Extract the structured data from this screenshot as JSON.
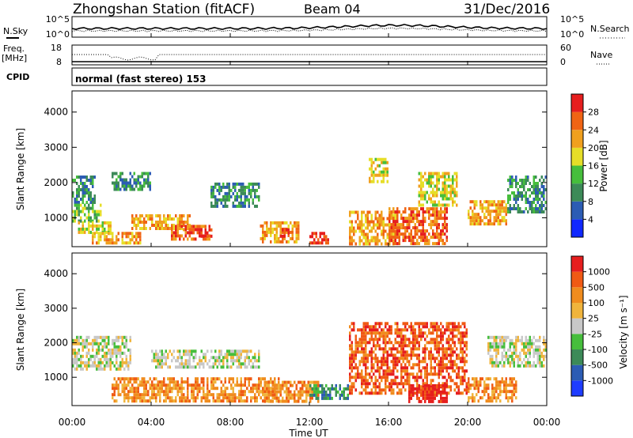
{
  "header": {
    "station": "Zhongshan Station (fitACF)",
    "beam": "Beam 04",
    "date": "31/Dec/2016"
  },
  "noise_panel": {
    "left_label": "N.Sky",
    "right_label": "N.Search",
    "left_ticks": [
      "10^5",
      "10^0"
    ],
    "right_ticks": [
      "10^5",
      "10^0"
    ]
  },
  "freq_panel": {
    "left_label_line1": "Freq.",
    "left_label_line2": "[MHz]",
    "left_ticks": [
      "18",
      "8"
    ],
    "right_label": "Nave",
    "right_ticks": [
      "60",
      "0"
    ]
  },
  "cpid": {
    "label": "CPID",
    "text": "normal (fast stereo) 153"
  },
  "time_axis": {
    "title": "Time UT",
    "ticks": [
      "00:00",
      "04:00",
      "08:00",
      "12:00",
      "16:00",
      "20:00",
      "00:00"
    ],
    "range_hours": [
      0,
      24
    ]
  },
  "chart_data": [
    {
      "type": "heatmap",
      "title": "Power",
      "ylabel": "Slant Range [km]",
      "xlabel": "Time UT",
      "ylim": [
        180,
        4600
      ],
      "yticks": [
        "1000",
        "2000",
        "3000",
        "4000"
      ],
      "colorbar": {
        "label": "Power [dB]",
        "ticks": [
          "4",
          "8",
          "12",
          "16",
          "20",
          "24",
          "28"
        ],
        "colors": [
          "#1028ff",
          "#2c5cb4",
          "#3c8a58",
          "#46be3c",
          "#e6de28",
          "#f0a01e",
          "#f06414",
          "#e61e1e"
        ]
      },
      "regions": [
        {
          "t": [
            0.0,
            1.2
          ],
          "r": [
            1400,
            2200
          ],
          "level": 2
        },
        {
          "t": [
            0.0,
            1.5
          ],
          "r": [
            900,
            1400
          ],
          "level": 3
        },
        {
          "t": [
            0.3,
            2.0
          ],
          "r": [
            600,
            900
          ],
          "level": 4
        },
        {
          "t": [
            1.0,
            3.5
          ],
          "r": [
            300,
            600
          ],
          "level": 5
        },
        {
          "t": [
            2.0,
            4.0
          ],
          "r": [
            1800,
            2300
          ],
          "level": 2
        },
        {
          "t": [
            3.0,
            6.0
          ],
          "r": [
            700,
            1100
          ],
          "level": 5
        },
        {
          "t": [
            5.0,
            7.0
          ],
          "r": [
            400,
            800
          ],
          "level": 6
        },
        {
          "t": [
            6.5,
            7.2
          ],
          "r": [
            500,
            700
          ],
          "level": 7
        },
        {
          "t": [
            7.0,
            9.5
          ],
          "r": [
            1300,
            2000
          ],
          "level": 2
        },
        {
          "t": [
            9.5,
            11.5
          ],
          "r": [
            300,
            900
          ],
          "level": 5
        },
        {
          "t": [
            10.5,
            11.0
          ],
          "r": [
            500,
            700
          ],
          "level": 7
        },
        {
          "t": [
            12.0,
            13.0
          ],
          "r": [
            300,
            600
          ],
          "level": 7
        },
        {
          "t": [
            14.0,
            16.5
          ],
          "r": [
            300,
            1200
          ],
          "level": 5
        },
        {
          "t": [
            15.0,
            16.0
          ],
          "r": [
            2000,
            2700
          ],
          "level": 4
        },
        {
          "t": [
            16.0,
            19.0
          ],
          "r": [
            300,
            1300
          ],
          "level": 6
        },
        {
          "t": [
            17.5,
            19.5
          ],
          "r": [
            1400,
            2300
          ],
          "level": 4
        },
        {
          "t": [
            20.0,
            22.0
          ],
          "r": [
            800,
            1500
          ],
          "level": 5
        },
        {
          "t": [
            22.0,
            24.0
          ],
          "r": [
            1200,
            2200
          ],
          "level": 2
        }
      ]
    },
    {
      "type": "heatmap",
      "title": "Velocity",
      "ylabel": "Slant Range [km]",
      "xlabel": "Time UT",
      "ylim": [
        180,
        4600
      ],
      "yticks": [
        "1000",
        "2000",
        "3000",
        "4000"
      ],
      "colorbar": {
        "label": "Velocity [m s⁻¹]",
        "ticks": [
          "1000",
          "500",
          "100",
          "25",
          "-25",
          "-100",
          "-500",
          "-1000"
        ],
        "colors": [
          "#1e3cff",
          "#2c5cb4",
          "#3c8a58",
          "#46be3c",
          "#c8c8c8",
          "#f0b43c",
          "#f08c1e",
          "#f05a14",
          "#e61e1e"
        ]
      },
      "regions": [
        {
          "t": [
            0.0,
            3.0
          ],
          "r": [
            1200,
            2200
          ],
          "level": 4
        },
        {
          "t": [
            2.0,
            10.5
          ],
          "r": [
            300,
            1000
          ],
          "level": 6
        },
        {
          "t": [
            4.0,
            9.5
          ],
          "r": [
            1300,
            1800
          ],
          "level": 4
        },
        {
          "t": [
            9.5,
            12.5
          ],
          "r": [
            300,
            900
          ],
          "level": 6
        },
        {
          "t": [
            12.0,
            14.0
          ],
          "r": [
            400,
            800
          ],
          "level": 2
        },
        {
          "t": [
            14.0,
            20.0
          ],
          "r": [
            500,
            2600
          ],
          "level": 7
        },
        {
          "t": [
            17.0,
            19.0
          ],
          "r": [
            300,
            800
          ],
          "level": 8
        },
        {
          "t": [
            20.0,
            22.5
          ],
          "r": [
            300,
            1000
          ],
          "level": 6
        },
        {
          "t": [
            21.0,
            24.0
          ],
          "r": [
            1300,
            2200
          ],
          "level": 4
        }
      ]
    }
  ]
}
